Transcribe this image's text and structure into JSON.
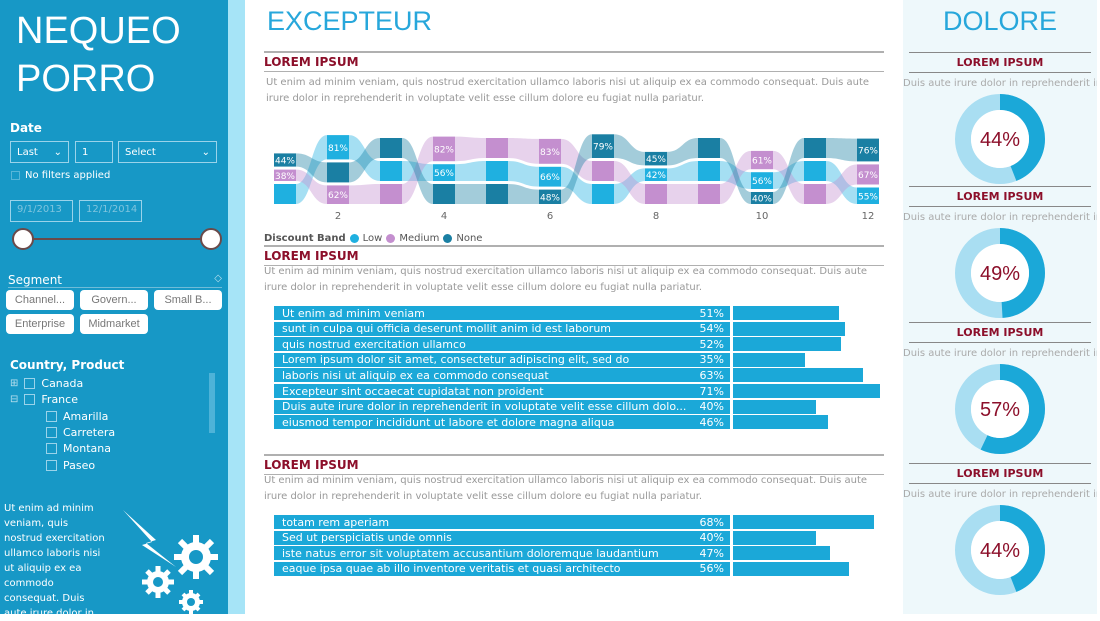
{
  "sidebar": {
    "title_line1": "NEQUEO",
    "title_line2": "PORRO",
    "date_label": "Date",
    "period": "Last",
    "count": "1",
    "unit": "Select",
    "no_filters": "No filters applied",
    "start_date": "9/1/2013",
    "end_date": "12/1/2014",
    "segment_label": "Segment",
    "segments": [
      "Channel...",
      "Govern...",
      "Small B...",
      "Enterprise",
      "Midmarket"
    ],
    "tree_label": "Country, Product",
    "countries": [
      {
        "name": "Canada",
        "expanded": false
      },
      {
        "name": "France",
        "expanded": true
      }
    ],
    "products": [
      "Amarilla",
      "Carretera",
      "Montana",
      "Paseo"
    ],
    "footer_text": "Ut enim ad minim veniam, quis nostrud exercitation ullamco laboris nisi ut aliquip ex ea commodo consequat. Duis aute irure dolor in"
  },
  "main": {
    "title": "EXCEPTEUR",
    "section1": {
      "heading": "LOREM IPSUM",
      "text": "Ut enim ad minim veniam, quis nostrud exercitation ullamco laboris nisi ut aliquip ex ea commodo consequat. Duis aute irure dolor in reprehenderit in voluptate velit esse cillum dolore eu fugiat nulla pariatur."
    },
    "legend": {
      "title": "Discount Band",
      "items": [
        "Low",
        "Medium",
        "None"
      ]
    },
    "section2": {
      "heading": "LOREM IPSUM",
      "text": "Ut enim ad minim veniam, quis nostrud exercitation ullamco laboris nisi ut aliquip ex ea commodo consequat. Duis aute irure dolor in reprehenderit in voluptate velit esse cillum dolore eu fugiat nulla pariatur.",
      "rows": [
        {
          "label": "Ut enim ad minim veniam",
          "value": 51
        },
        {
          "label": "sunt in culpa qui officia deserunt mollit anim id est laborum",
          "value": 54
        },
        {
          "label": "quis nostrud exercitation ullamco",
          "value": 52
        },
        {
          "label": "Lorem ipsum dolor sit amet, consectetur adipiscing elit, sed do",
          "value": 35
        },
        {
          "label": "laboris nisi ut aliquip ex ea commodo consequat",
          "value": 63
        },
        {
          "label": "Excepteur sint occaecat cupidatat non proident",
          "value": 71
        },
        {
          "label": "Duis aute irure dolor in reprehenderit in voluptate velit esse cillum dolo...",
          "value": 40
        },
        {
          "label": " eiusmod tempor incididunt ut labore et dolore magna aliqua",
          "value": 46
        }
      ]
    },
    "section3": {
      "heading": "LOREM IPSUM",
      "text": "Ut enim ad minim veniam, quis nostrud exercitation ullamco laboris nisi ut aliquip ex ea commodo consequat. Duis aute irure dolor in reprehenderit in voluptate velit esse cillum dolore eu fugiat nulla pariatur.",
      "rows": [
        {
          "label": "totam rem aperiam",
          "value": 68
        },
        {
          "label": "Sed ut perspiciatis unde omnis",
          "value": 40
        },
        {
          "label": "iste natus error sit voluptatem accusantium doloremque laudantium",
          "value": 47
        },
        {
          "label": "eaque ipsa quae ab illo inventore veritatis et quasi architecto",
          "value": 56
        }
      ]
    }
  },
  "right": {
    "title": "DOLORE",
    "cards": [
      {
        "heading": "LOREM IPSUM",
        "text": "Duis aute irure dolor in reprehenderit in",
        "value": 44
      },
      {
        "heading": "LOREM IPSUM",
        "text": "Duis aute irure dolor in reprehenderit in",
        "value": 49
      },
      {
        "heading": "LOREM IPSUM",
        "text": "Duis aute irure dolor in reprehenderit in",
        "value": 57
      },
      {
        "heading": "LOREM IPSUM",
        "text": "Duis aute irure dolor in reprehenderit in",
        "value": 44
      }
    ]
  },
  "colors": {
    "sidebar": "#1798c6",
    "accent": "#27a7db",
    "bar": "#1ba8d8",
    "heading": "#8c0f2a",
    "Low": "#1fb0e0",
    "Medium": "#c48fcf",
    "None": "#1a7fa3"
  },
  "chart_data": {
    "type": "ribbon",
    "legend_title": "Discount Band",
    "series": [
      "Low",
      "Medium",
      "None"
    ],
    "x_ticks": [
      2,
      4,
      6,
      8,
      10,
      12
    ],
    "months": [
      {
        "x": 1,
        "order_top_to_bottom": [
          "None",
          "Medium",
          "Low"
        ],
        "labels": {
          "None": 44,
          "Medium": 38
        }
      },
      {
        "x": 2,
        "order_top_to_bottom": [
          "Low",
          "None",
          "Medium"
        ],
        "labels": {
          "Low": 81,
          "Medium": 62
        }
      },
      {
        "x": 3,
        "order_top_to_bottom": [
          "None",
          "Low",
          "Medium"
        ],
        "labels": {}
      },
      {
        "x": 4,
        "order_top_to_bottom": [
          "Medium",
          "Low",
          "None"
        ],
        "labels": {
          "Medium": 82,
          "Low": 56
        }
      },
      {
        "x": 5,
        "order_top_to_bottom": [
          "Medium",
          "Low",
          "None"
        ],
        "labels": {}
      },
      {
        "x": 6,
        "order_top_to_bottom": [
          "Medium",
          "Low",
          "None"
        ],
        "labels": {
          "Medium": 83,
          "Low": 66,
          "None": 48
        }
      },
      {
        "x": 7,
        "order_top_to_bottom": [
          "None",
          "Medium",
          "Low"
        ],
        "labels": {
          "None": 79
        }
      },
      {
        "x": 8,
        "order_top_to_bottom": [
          "None",
          "Low",
          "Medium"
        ],
        "labels": {
          "None": 45,
          "Low": 42
        }
      },
      {
        "x": 9,
        "order_top_to_bottom": [
          "None",
          "Low",
          "Medium"
        ],
        "labels": {}
      },
      {
        "x": 10,
        "order_top_to_bottom": [
          "Medium",
          "Low",
          "None"
        ],
        "labels": {
          "Medium": 61,
          "Low": 56,
          "None": 40
        }
      },
      {
        "x": 11,
        "order_top_to_bottom": [
          "None",
          "Low",
          "Medium"
        ],
        "labels": {}
      },
      {
        "x": 12,
        "order_top_to_bottom": [
          "None",
          "Medium",
          "Low"
        ],
        "labels": {
          "None": 76,
          "Medium": 67,
          "Low": 55
        }
      }
    ]
  }
}
